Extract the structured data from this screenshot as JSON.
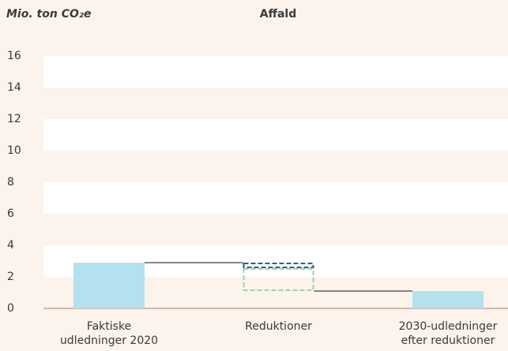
{
  "chart_data": {
    "type": "waterfall",
    "title": "Affald",
    "y_label": "Mio. ton CO₂e",
    "categories": [
      "Faktiske udledninger 2020",
      "Reduktioner",
      "2030-udledninger efter reduktioner"
    ],
    "values": [
      2.9,
      null,
      1.1
    ],
    "color": "#b3e2ee",
    "reductions": [
      {
        "value": 0.35,
        "color": "#1d6196"
      },
      {
        "value": 1.45,
        "color": "#9fd3a8"
      }
    ],
    "ylim": [
      0,
      16
    ],
    "yticks": [
      0,
      2,
      4,
      6,
      8,
      10,
      12,
      14,
      16
    ],
    "grid": true
  }
}
